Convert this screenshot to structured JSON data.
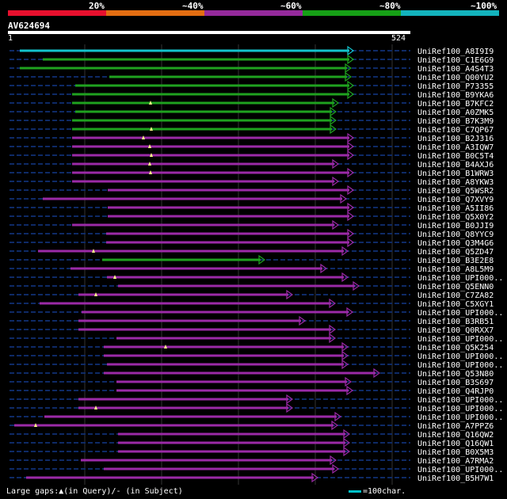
{
  "legend": {
    "segments": [
      {
        "label": "20%",
        "color": "#e8102e"
      },
      {
        "label": "~40%",
        "color": "#e36e12"
      },
      {
        "label": "~60%",
        "color": "#952a9c"
      },
      {
        "label": "~80%",
        "color": "#16a016"
      },
      {
        "label": "~100%",
        "color": "#13b3bd"
      }
    ]
  },
  "query": {
    "id": "AV624694",
    "start": "1",
    "end": "524"
  },
  "colors": {
    "cyan": "#13c3cc",
    "green": "#1fa21f",
    "purple": "#9b2aa7",
    "dash": "#0e2a66",
    "grid": "#333333",
    "tri": "#ffff88"
  },
  "hits": [
    {
      "name": "UniRef100_A8I9I9",
      "c": "cyan",
      "s": 25,
      "e": 443,
      "tri": []
    },
    {
      "name": "UniRef100_C1E6G9",
      "c": "green",
      "s": 54,
      "e": 443,
      "tri": []
    },
    {
      "name": "UniRef100_A4S4T3",
      "c": "green",
      "s": 25,
      "e": 440,
      "tri": []
    },
    {
      "name": "UniRef100_Q00YU2",
      "c": "green",
      "s": 138,
      "e": 440,
      "tri": []
    },
    {
      "name": "UniRef100_P73355",
      "c": "green",
      "s": 95,
      "e": 443,
      "tri": []
    },
    {
      "name": "UniRef100_B9YKA6",
      "c": "green",
      "s": 91,
      "e": 443,
      "tri": []
    },
    {
      "name": "UniRef100_B7KFC2",
      "c": "green",
      "s": 91,
      "e": 424,
      "tri": [
        190
      ]
    },
    {
      "name": "UniRef100_A0ZMK5",
      "c": "green",
      "s": 95,
      "e": 421,
      "tri": []
    },
    {
      "name": "UniRef100_B7K3M9",
      "c": "green",
      "s": 91,
      "e": 421,
      "tri": []
    },
    {
      "name": "UniRef100_C7QP67",
      "c": "green",
      "s": 91,
      "e": 421,
      "tri": [
        191
      ]
    },
    {
      "name": "UniRef100_B2J316",
      "c": "purple",
      "s": 91,
      "e": 443,
      "tri": [
        181
      ]
    },
    {
      "name": "UniRef100_A3IQW7",
      "c": "purple",
      "s": 91,
      "e": 443,
      "tri": [
        189
      ]
    },
    {
      "name": "UniRef100_B0C5T4",
      "c": "purple",
      "s": 91,
      "e": 443,
      "tri": [
        191
      ]
    },
    {
      "name": "UniRef100_B4AXJ6",
      "c": "purple",
      "s": 91,
      "e": 424,
      "tri": [
        189
      ]
    },
    {
      "name": "UniRef100_B1WRW3",
      "c": "purple",
      "s": 91,
      "e": 443,
      "tri": [
        190
      ]
    },
    {
      "name": "UniRef100_A8YKW3",
      "c": "purple",
      "s": 91,
      "e": 424,
      "tri": []
    },
    {
      "name": "UniRef100_Q5WSR2",
      "c": "purple",
      "s": 136,
      "e": 443,
      "tri": []
    },
    {
      "name": "UniRef100_Q7XVY9",
      "c": "purple",
      "s": 54,
      "e": 434,
      "tri": []
    },
    {
      "name": "UniRef100_A5II86",
      "c": "purple",
      "s": 136,
      "e": 443,
      "tri": []
    },
    {
      "name": "UniRef100_Q5X0Y2",
      "c": "purple",
      "s": 136,
      "e": 443,
      "tri": []
    },
    {
      "name": "UniRef100_B0JJI9",
      "c": "purple",
      "s": 91,
      "e": 424,
      "tri": []
    },
    {
      "name": "UniRef100_Q8YYC9",
      "c": "purple",
      "s": 134,
      "e": 443,
      "tri": []
    },
    {
      "name": "UniRef100_Q3M4G6",
      "c": "purple",
      "s": 134,
      "e": 443,
      "tri": []
    },
    {
      "name": "UniRef100_Q5ZD47",
      "c": "purple",
      "s": 48,
      "e": 436,
      "tri": [
        118
      ]
    },
    {
      "name": "UniRef100_B3E2E8",
      "c": "green",
      "s": 129,
      "e": 331,
      "tri": []
    },
    {
      "name": "UniRef100_A8L5M9",
      "c": "purple",
      "s": 89,
      "e": 409,
      "tri": []
    },
    {
      "name": "UniRef100_UPI000..",
      "c": "purple",
      "s": 135,
      "e": 436,
      "tri": [
        145
      ]
    },
    {
      "name": "UniRef100_Q5ENN0",
      "c": "purple",
      "s": 149,
      "e": 450,
      "tri": []
    },
    {
      "name": "UniRef100_C7ZA82",
      "c": "purple",
      "s": 99,
      "e": 366,
      "tri": [
        121
      ]
    },
    {
      "name": "UniRef100_C5XGY1",
      "c": "purple",
      "s": 50,
      "e": 420,
      "tri": []
    },
    {
      "name": "UniRef100_UPI000..",
      "c": "purple",
      "s": 103,
      "e": 442,
      "tri": []
    },
    {
      "name": "UniRef100_B3RB51",
      "c": "purple",
      "s": 99,
      "e": 382,
      "tri": []
    },
    {
      "name": "UniRef100_Q0RXX7",
      "c": "purple",
      "s": 99,
      "e": 420,
      "tri": []
    },
    {
      "name": "UniRef100_UPI000..",
      "c": "purple",
      "s": 147,
      "e": 420,
      "tri": []
    },
    {
      "name": "UniRef100_Q5K254",
      "c": "purple",
      "s": 131,
      "e": 436,
      "tri": [
        209
      ]
    },
    {
      "name": "UniRef100_UPI000..",
      "c": "purple",
      "s": 131,
      "e": 436,
      "tri": []
    },
    {
      "name": "UniRef100_UPI000..",
      "c": "purple",
      "s": 135,
      "e": 436,
      "tri": []
    },
    {
      "name": "UniRef100_Q53N80",
      "c": "purple",
      "s": 131,
      "e": 476,
      "tri": []
    },
    {
      "name": "UniRef100_B3S697",
      "c": "purple",
      "s": 147,
      "e": 440,
      "tri": []
    },
    {
      "name": "UniRef100_Q4RJP0",
      "c": "purple",
      "s": 147,
      "e": 442,
      "tri": []
    },
    {
      "name": "UniRef100_UPI000..",
      "c": "purple",
      "s": 99,
      "e": 366,
      "tri": []
    },
    {
      "name": "UniRef100_UPI000..",
      "c": "purple",
      "s": 99,
      "e": 366,
      "tri": [
        121
      ]
    },
    {
      "name": "UniRef100_UPI000..",
      "c": "purple",
      "s": 56,
      "e": 427,
      "tri": []
    },
    {
      "name": "UniRef100_A7PPZ6",
      "c": "purple",
      "s": 18,
      "e": 423,
      "tri": [
        45
      ]
    },
    {
      "name": "UniRef100_Q16QW2",
      "c": "purple",
      "s": 149,
      "e": 438,
      "tri": []
    },
    {
      "name": "UniRef100_Q16QW1",
      "c": "purple",
      "s": 149,
      "e": 438,
      "tri": []
    },
    {
      "name": "UniRef100_B0X5M3",
      "c": "purple",
      "s": 149,
      "e": 438,
      "tri": []
    },
    {
      "name": "UniRef100_A7RMA2",
      "c": "purple",
      "s": 102,
      "e": 421,
      "tri": []
    },
    {
      "name": "UniRef100_UPI000..",
      "c": "purple",
      "s": 131,
      "e": 424,
      "tri": []
    },
    {
      "name": "UniRef100_B5H7W1",
      "c": "purple",
      "s": 33,
      "e": 398,
      "tri": []
    }
  ],
  "footer": {
    "text": "Large gaps:▲(in Query)/- (in Subject)",
    "scale": "=100char."
  }
}
